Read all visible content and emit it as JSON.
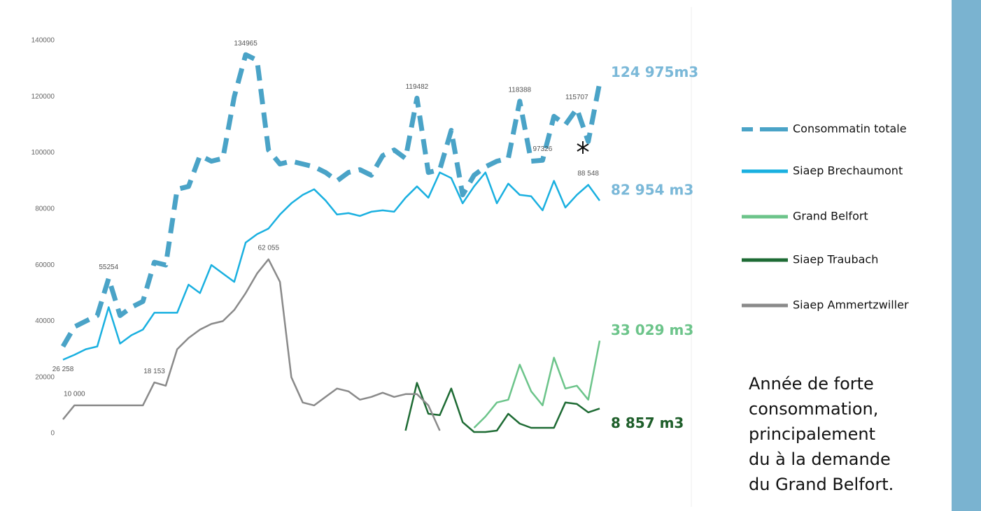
{
  "chart_data": {
    "type": "line",
    "categories": [
      null,
      null,
      null,
      null,
      null,
      null,
      null,
      null,
      null,
      null,
      null,
      null,
      null,
      null,
      null,
      null,
      null,
      null,
      null,
      null,
      null,
      null,
      null,
      null,
      null,
      null,
      null,
      null,
      null,
      null,
      null,
      null,
      null,
      null,
      null,
      null,
      null,
      null,
      null,
      null,
      null,
      null,
      null,
      null,
      null,
      null,
      null,
      null
    ],
    "ylim": [
      0,
      140000
    ],
    "yticks": [
      0,
      20000,
      40000,
      60000,
      80000,
      100000,
      120000,
      140000
    ],
    "grid": false,
    "series": [
      {
        "name": "Consommatin totale",
        "color": "#4aa3c7",
        "dashed": true,
        "end_label": "124 975m3",
        "end_color": "#7ab8d8",
        "values": [
          31000,
          38000,
          40000,
          42000,
          55254,
          42000,
          45000,
          47000,
          61000,
          60000,
          87000,
          88000,
          99000,
          97000,
          98000,
          120000,
          134965,
          133000,
          101000,
          96000,
          97000,
          96000,
          95000,
          93000,
          90000,
          93000,
          94000,
          92000,
          99000,
          101000,
          98000,
          119482,
          93000,
          94000,
          108000,
          85000,
          92000,
          95000,
          97000,
          98000,
          118388,
          97000,
          97326,
          113000,
          110000,
          115707,
          104000,
          124975
        ],
        "value_labels": [
          null,
          null,
          null,
          null,
          "55254",
          null,
          null,
          null,
          null,
          null,
          null,
          null,
          null,
          null,
          null,
          null,
          "134965",
          null,
          null,
          null,
          null,
          null,
          null,
          null,
          null,
          null,
          null,
          null,
          null,
          null,
          null,
          "119482",
          null,
          null,
          null,
          null,
          null,
          null,
          null,
          null,
          "118388",
          null,
          "97326",
          null,
          null,
          "115707",
          null,
          null
        ]
      },
      {
        "name": "Siaep Brechaumont",
        "color": "#1ab0e0",
        "dashed": false,
        "end_label": "82 954 m3",
        "end_color": "#7ab8d8",
        "values": [
          26258,
          28000,
          30000,
          31000,
          45000,
          32000,
          35000,
          37000,
          43000,
          43000,
          43000,
          53000,
          50000,
          60000,
          57000,
          54000,
          68000,
          71000,
          73000,
          78000,
          82000,
          85000,
          87000,
          83000,
          78000,
          78500,
          77500,
          79000,
          79500,
          79000,
          84000,
          88000,
          84000,
          93000,
          91000,
          82000,
          88000,
          93000,
          82000,
          89000,
          85000,
          84500,
          79500,
          90000,
          80500,
          85000,
          88548,
          82954
        ],
        "value_labels": [
          "26 258",
          null,
          null,
          null,
          null,
          null,
          null,
          null,
          null,
          null,
          null,
          null,
          null,
          null,
          null,
          null,
          null,
          null,
          null,
          null,
          null,
          null,
          null,
          null,
          null,
          null,
          null,
          null,
          null,
          null,
          null,
          null,
          null,
          null,
          null,
          null,
          null,
          null,
          null,
          null,
          null,
          null,
          null,
          null,
          null,
          null,
          "88 548",
          null
        ]
      },
      {
        "name": "Grand Belfort",
        "color": "#6cc48a",
        "dashed": false,
        "end_label": "33 029 m3",
        "end_color": "#6cc48a",
        "values": [
          null,
          null,
          null,
          null,
          null,
          null,
          null,
          null,
          null,
          null,
          null,
          null,
          null,
          null,
          null,
          null,
          null,
          null,
          null,
          null,
          null,
          null,
          null,
          null,
          null,
          null,
          null,
          null,
          null,
          null,
          null,
          null,
          null,
          null,
          null,
          null,
          2000,
          6000,
          11000,
          12000,
          24500,
          15000,
          10000,
          27000,
          16000,
          17000,
          12000,
          33029
        ],
        "value_labels": null
      },
      {
        "name": "Siaep Traubach",
        "color": "#1e6b34",
        "dashed": false,
        "end_label": "8 857 m3",
        "end_color": "#1e5e2a",
        "values": [
          null,
          null,
          null,
          null,
          null,
          null,
          null,
          null,
          null,
          null,
          null,
          null,
          null,
          null,
          null,
          null,
          null,
          null,
          null,
          null,
          null,
          null,
          null,
          null,
          null,
          null,
          null,
          null,
          null,
          null,
          1000,
          18000,
          7000,
          6500,
          16000,
          4000,
          500,
          500,
          1000,
          7000,
          3500,
          2000,
          2000,
          2000,
          11000,
          10500,
          7500,
          8857
        ],
        "value_labels": null
      },
      {
        "name": "Siaep Ammertzwiller",
        "color": "#8a8a8a",
        "dashed": false,
        "values": [
          5000,
          10000,
          10000,
          10000,
          10000,
          10000,
          10000,
          10000,
          18153,
          17000,
          30000,
          34000,
          37000,
          39000,
          40000,
          44000,
          50000,
          57000,
          62055,
          54000,
          20000,
          11000,
          10000,
          13000,
          16000,
          15000,
          12000,
          13000,
          14500,
          13000,
          14000,
          14000,
          10000,
          1000,
          null,
          null,
          null,
          null,
          null,
          null,
          null,
          null,
          null,
          null,
          null,
          null,
          null,
          null
        ],
        "value_labels": [
          null,
          "10 000",
          null,
          null,
          null,
          null,
          null,
          null,
          "18 153",
          null,
          null,
          null,
          null,
          null,
          null,
          null,
          null,
          null,
          "62 055",
          null,
          null,
          null,
          null,
          null,
          null,
          null,
          null,
          null,
          null,
          null,
          null,
          null,
          null,
          null,
          null,
          null,
          null,
          null,
          null,
          null,
          null,
          null,
          null,
          null,
          null,
          null,
          null,
          null
        ]
      }
    ],
    "note": [
      "Année de forte",
      "consommation,",
      "principalement",
      "du à la demande",
      "du Grand Belfort."
    ]
  }
}
